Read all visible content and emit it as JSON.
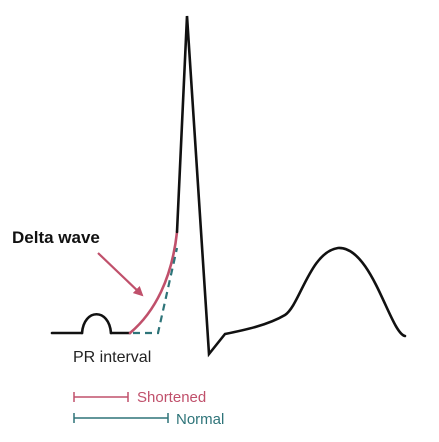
{
  "labels": {
    "delta_wave": "Delta wave",
    "pr_interval": "PR interval"
  },
  "legend": [
    {
      "label": "Shortened",
      "color": "#c0506b"
    },
    {
      "label": "Normal",
      "color": "#2e7479"
    }
  ],
  "colors": {
    "trace": "#111111",
    "delta_wave": "#c0506b",
    "normal_path": "#2e7479",
    "arrow": "#c0506b"
  }
}
